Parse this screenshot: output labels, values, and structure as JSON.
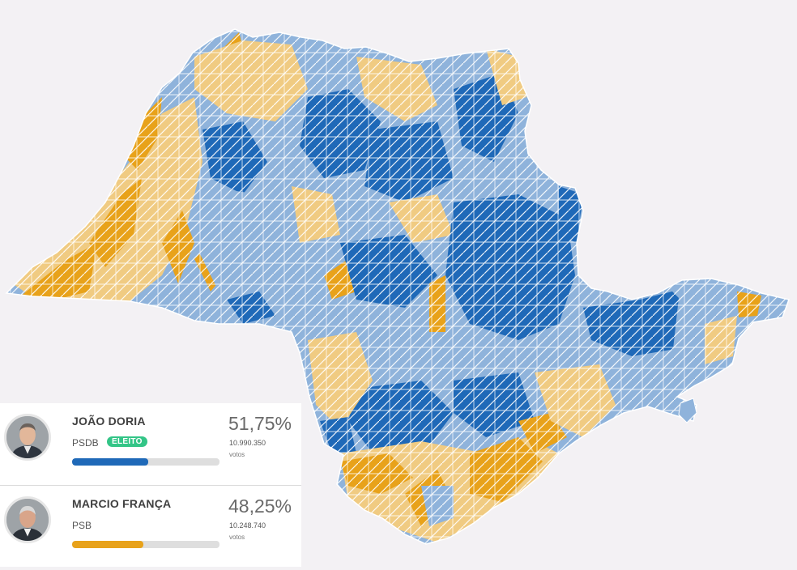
{
  "map": {
    "colors": {
      "doria_strong": "#1f69b8",
      "doria_light": "#8fb3db",
      "franca_light": "#f0cb82",
      "franca_strong": "#e8a21a",
      "border": "#ffffff"
    }
  },
  "candidates": [
    {
      "name": "JOÃO DORIA",
      "party": "PSDB",
      "badge": "ELEITO",
      "percent": "51,75%",
      "votes": "10.990.350",
      "votes_label": "votos",
      "share": 51.75,
      "bar_color": "#1f69b8"
    },
    {
      "name": "MARCIO FRANÇA",
      "party": "PSB",
      "percent": "48,25%",
      "votes": "10.248.740",
      "votes_label": "votos",
      "share": 48.25,
      "bar_color": "#e8a21a"
    }
  ]
}
